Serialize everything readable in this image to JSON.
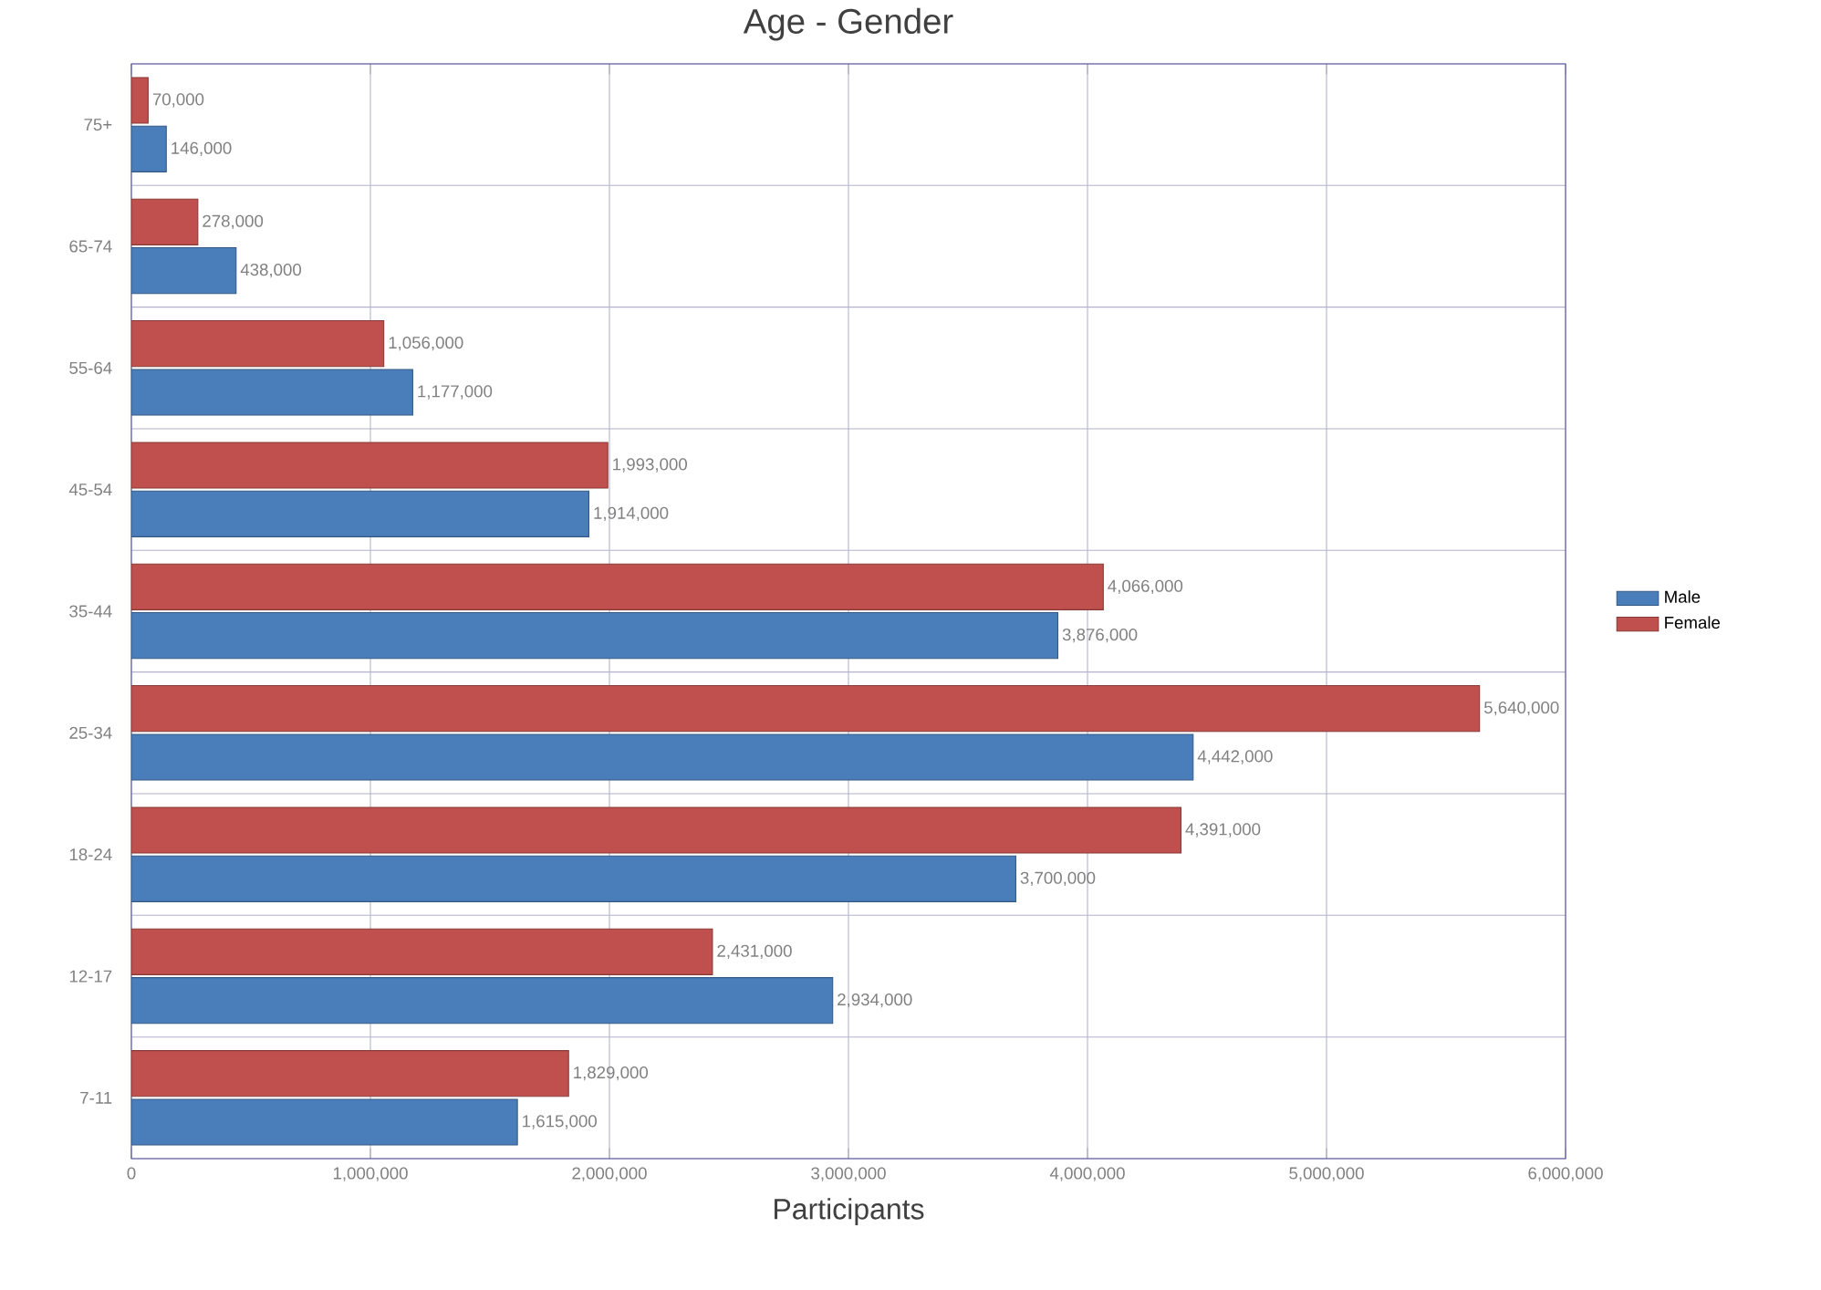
{
  "chart_data": {
    "type": "bar",
    "orientation": "horizontal",
    "title": "Age - Gender",
    "xlabel": "Participants",
    "categories": [
      "75+",
      "65-74",
      "55-64",
      "45-54",
      "35-44",
      "25-34",
      "18-24",
      "12-17",
      "7-11"
    ],
    "series": [
      {
        "name": "Male",
        "color": "#4a7ebb",
        "values": [
          146000,
          438000,
          1177000,
          1914000,
          3876000,
          4442000,
          3700000,
          2934000,
          1615000
        ],
        "value_labels": [
          "146,000",
          "438,000",
          "1,177,000",
          "1,914,000",
          "3,876,000",
          "4,442,000",
          "3,700,000",
          "2,934,000",
          "1,615,000"
        ]
      },
      {
        "name": "Female",
        "color": "#c0504d",
        "values": [
          70000,
          278000,
          1056000,
          1993000,
          4066000,
          5640000,
          4391000,
          2431000,
          1829000
        ],
        "value_labels": [
          "70,000",
          "278,000",
          "1,056,000",
          "1,993,000",
          "4,066,000",
          "5,640,000",
          "4,391,000",
          "2,431,000",
          "1,829,000"
        ]
      }
    ],
    "xlim": [
      0,
      6000000
    ],
    "xticks": [
      {
        "value": 0,
        "label": "0"
      },
      {
        "value": 1000000,
        "label": "1,000,000"
      },
      {
        "value": 2000000,
        "label": "2,000,000"
      },
      {
        "value": 3000000,
        "label": "3,000,000"
      },
      {
        "value": 4000000,
        "label": "4,000,000"
      },
      {
        "value": 5000000,
        "label": "5,000,000"
      },
      {
        "value": 6000000,
        "label": "6,000,000"
      }
    ],
    "grid": true,
    "legend": "right"
  }
}
